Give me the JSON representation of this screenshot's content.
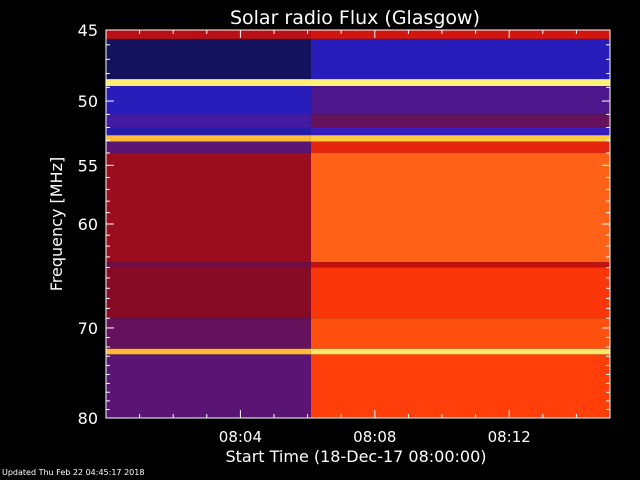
{
  "chart_data": {
    "type": "heatmap",
    "title": "Solar radio Flux (Glasgow)",
    "xlabel": "Start Time (18-Dec-17 08:00:00)",
    "ylabel": "Frequency [MHz]",
    "x_unit": "minutes",
    "xlim": [
      0,
      15
    ],
    "ylim": [
      45,
      80
    ],
    "y_scale": "log",
    "y_reversed": true,
    "xticks": [
      {
        "value": 4,
        "label": "08:04"
      },
      {
        "value": 8,
        "label": "08:08"
      },
      {
        "value": 12,
        "label": "08:12"
      }
    ],
    "yticks": [
      {
        "value": 45,
        "label": "45"
      },
      {
        "value": 50,
        "label": "50"
      },
      {
        "value": 55,
        "label": "55"
      },
      {
        "value": 60,
        "label": "60"
      },
      {
        "value": 70,
        "label": "70"
      },
      {
        "value": 80,
        "label": "80"
      }
    ],
    "event_start_minute": 6.1,
    "colormap": [
      "#10104a",
      "#2c20d0",
      "#800a26",
      "#c81010",
      "#ff3a08",
      "#ff7a20",
      "#ffd040",
      "#ffff90"
    ],
    "frequency_bands": [
      {
        "f0": 45.0,
        "f1": 45.6,
        "before": 0.4,
        "after": 0.45
      },
      {
        "f0": 45.6,
        "f1": 48.4,
        "before": 0.02,
        "after": 0.12
      },
      {
        "f0": 48.4,
        "f1": 48.9,
        "before": 0.95,
        "after": 0.96
      },
      {
        "f0": 48.9,
        "f1": 51.0,
        "before": 0.12,
        "after": 0.2
      },
      {
        "f0": 51.0,
        "f1": 52.0,
        "before": 0.18,
        "after": 0.24
      },
      {
        "f0": 52.0,
        "f1": 52.6,
        "before": 0.1,
        "after": 0.16
      },
      {
        "f0": 52.6,
        "f1": 53.1,
        "before": 0.82,
        "after": 0.85
      },
      {
        "f0": 53.1,
        "f1": 54.0,
        "before": 0.22,
        "after": 0.5
      },
      {
        "f0": 54.0,
        "f1": 63.5,
        "before": 0.34,
        "after": 0.66
      },
      {
        "f0": 63.5,
        "f1": 64.0,
        "before": 0.26,
        "after": 0.42
      },
      {
        "f0": 64.0,
        "f1": 69.0,
        "before": 0.3,
        "after": 0.56
      },
      {
        "f0": 69.0,
        "f1": 72.2,
        "before": 0.24,
        "after": 0.62
      },
      {
        "f0": 72.2,
        "f1": 72.8,
        "before": 0.82,
        "after": 0.93
      },
      {
        "f0": 72.8,
        "f1": 80.0,
        "before": 0.22,
        "after": 0.58
      }
    ]
  },
  "footer": {
    "updated": "Updated Thu Feb 22 04:45:17 2018"
  }
}
